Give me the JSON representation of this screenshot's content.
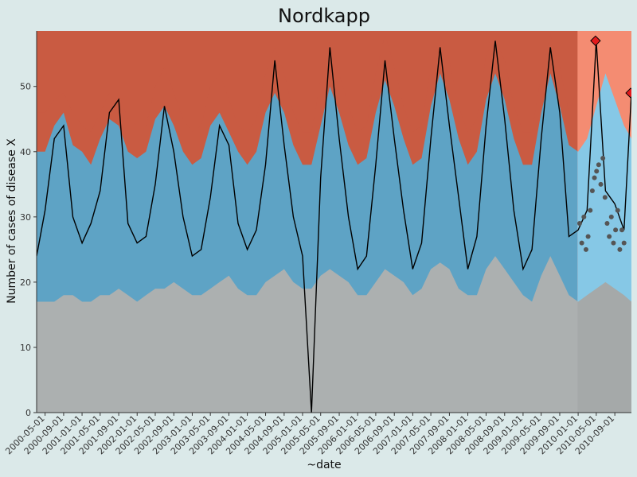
{
  "chart_data": {
    "type": "area",
    "title": "Nordkapp",
    "xlabel": "~date",
    "ylabel": "Number of cases of disease X",
    "ylim": [
      0,
      58.5
    ],
    "xlim": [
      "2000-03-06",
      "2010-12-20"
    ],
    "yticks": [
      0,
      10,
      20,
      30,
      40,
      50
    ],
    "xticks": [
      "2000-05-01",
      "2000-09-01",
      "2001-01-01",
      "2001-05-01",
      "2001-09-01",
      "2002-01-01",
      "2002-05-01",
      "2002-09-01",
      "2003-01-01",
      "2003-05-01",
      "2003-09-01",
      "2004-01-01",
      "2004-05-01",
      "2004-09-01",
      "2005-01-01",
      "2005-05-01",
      "2005-09-01",
      "2006-01-01",
      "2006-05-01",
      "2006-09-01",
      "2007-01-01",
      "2007-05-01",
      "2007-09-01",
      "2008-01-01",
      "2008-05-01",
      "2008-09-01",
      "2009-01-01",
      "2009-05-01",
      "2009-09-01",
      "2010-01-01",
      "2010-05-01",
      "2010-09-01"
    ],
    "grid": false,
    "legend": "none",
    "colors": {
      "background": "#dbe9e9",
      "lower_band": "#acb0b0",
      "middle_band": "#5ea3c5",
      "upper_band": "#c95b42",
      "lower_band_highlight": "#a5a9a9",
      "middle_band_highlight": "#86c8e6",
      "upper_band_highlight": "#f48c72",
      "line": "#000000",
      "points": "#555555",
      "alarm": "#e31a1c"
    },
    "highlight_start": "2009-12-28",
    "x": [
      "2000-03-06",
      "2000-05-01",
      "2000-07-01",
      "2000-09-01",
      "2000-11-01",
      "2001-01-01",
      "2001-03-01",
      "2001-05-01",
      "2001-07-01",
      "2001-09-01",
      "2001-11-01",
      "2002-01-01",
      "2002-03-01",
      "2002-05-01",
      "2002-07-01",
      "2002-09-01",
      "2002-11-01",
      "2003-01-01",
      "2003-03-01",
      "2003-05-01",
      "2003-07-01",
      "2003-09-01",
      "2003-11-01",
      "2004-01-01",
      "2004-03-01",
      "2004-05-01",
      "2004-07-01",
      "2004-09-01",
      "2004-11-01",
      "2005-01-01",
      "2005-03-01",
      "2005-05-01",
      "2005-07-01",
      "2005-09-01",
      "2005-11-01",
      "2006-01-01",
      "2006-03-01",
      "2006-05-01",
      "2006-07-01",
      "2006-09-01",
      "2006-11-01",
      "2007-01-01",
      "2007-03-01",
      "2007-05-01",
      "2007-07-01",
      "2007-09-01",
      "2007-11-01",
      "2008-01-01",
      "2008-03-01",
      "2008-05-01",
      "2008-07-01",
      "2008-09-01",
      "2008-11-01",
      "2009-01-01",
      "2009-03-01",
      "2009-05-01",
      "2009-07-01",
      "2009-09-01",
      "2009-11-01",
      "2010-01-01",
      "2010-03-01",
      "2010-05-01",
      "2010-07-01",
      "2010-09-01",
      "2010-11-01",
      "2010-12-20"
    ],
    "lower": [
      17,
      17,
      17,
      18,
      18,
      17,
      17,
      18,
      18,
      19,
      18,
      17,
      18,
      19,
      19,
      20,
      19,
      18,
      18,
      19,
      20,
      21,
      19,
      18,
      18,
      20,
      21,
      22,
      20,
      19,
      19,
      21,
      22,
      21,
      20,
      18,
      18,
      20,
      22,
      21,
      20,
      18,
      19,
      22,
      23,
      22,
      19,
      18,
      18,
      22,
      24,
      22,
      20,
      18,
      17,
      21,
      24,
      21,
      18,
      17,
      18,
      19,
      20,
      19,
      18,
      17
    ],
    "mid": [
      40,
      40,
      44,
      46,
      41,
      40,
      38,
      42,
      45,
      44,
      40,
      39,
      40,
      45,
      47,
      44,
      40,
      38,
      39,
      44,
      46,
      43,
      40,
      38,
      40,
      46,
      49,
      46,
      41,
      38,
      38,
      44,
      50,
      46,
      41,
      38,
      39,
      46,
      51,
      47,
      42,
      38,
      39,
      47,
      52,
      48,
      42,
      38,
      40,
      48,
      52,
      48,
      42,
      38,
      38,
      46,
      52,
      47,
      41,
      40,
      42,
      47,
      52,
      48,
      44,
      42
    ],
    "upper": [
      46,
      46,
      48,
      49,
      46,
      44,
      43,
      46,
      49,
      49,
      45,
      44,
      44,
      50,
      53,
      49,
      45,
      43,
      44,
      50,
      52,
      48,
      44,
      43,
      45,
      52,
      56,
      52,
      46,
      43,
      43,
      51,
      57,
      52,
      47,
      43,
      44,
      52,
      58,
      53,
      47,
      43,
      44,
      53,
      58,
      54,
      47,
      43,
      45,
      55,
      57,
      54,
      47,
      43,
      43,
      52,
      58,
      53,
      46,
      50,
      52,
      55,
      58,
      56,
      57,
      56
    ],
    "observed": [
      24,
      31,
      42,
      44,
      30,
      26,
      29,
      34,
      46,
      48,
      29,
      26,
      27,
      35,
      47,
      40,
      30,
      24,
      25,
      33,
      44,
      41,
      29,
      25,
      28,
      38,
      54,
      41,
      30,
      24,
      0,
      36,
      56,
      42,
      30,
      22,
      24,
      38,
      54,
      42,
      31,
      22,
      26,
      42,
      56,
      44,
      33,
      22,
      27,
      44,
      57,
      45,
      31,
      22,
      25,
      42,
      56,
      46,
      27,
      28,
      31,
      57,
      34,
      32,
      28,
      49
    ],
    "alarms": [
      {
        "x": "2010-04-26",
        "y": 57
      },
      {
        "x": "2010-12-15",
        "y": 49
      }
    ],
    "current_points": [
      {
        "x": "2010-01-11",
        "y": 29
      },
      {
        "x": "2010-01-25",
        "y": 26
      },
      {
        "x": "2010-02-08",
        "y": 30
      },
      {
        "x": "2010-02-22",
        "y": 25
      },
      {
        "x": "2010-03-08",
        "y": 27
      },
      {
        "x": "2010-03-22",
        "y": 31
      },
      {
        "x": "2010-04-05",
        "y": 34
      },
      {
        "x": "2010-04-19",
        "y": 36
      },
      {
        "x": "2010-05-03",
        "y": 37
      },
      {
        "x": "2010-05-17",
        "y": 38
      },
      {
        "x": "2010-05-31",
        "y": 35
      },
      {
        "x": "2010-06-14",
        "y": 39
      },
      {
        "x": "2010-06-28",
        "y": 33
      },
      {
        "x": "2010-07-12",
        "y": 29
      },
      {
        "x": "2010-07-26",
        "y": 27
      },
      {
        "x": "2010-08-09",
        "y": 30
      },
      {
        "x": "2010-08-23",
        "y": 26
      },
      {
        "x": "2010-09-06",
        "y": 28
      },
      {
        "x": "2010-09-20",
        "y": 31
      },
      {
        "x": "2010-10-04",
        "y": 25
      },
      {
        "x": "2010-10-18",
        "y": 28
      },
      {
        "x": "2010-11-01",
        "y": 26
      }
    ]
  }
}
